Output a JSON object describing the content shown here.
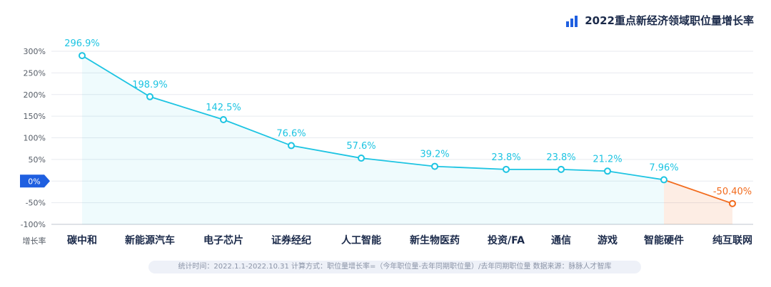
{
  "chart_data": {
    "type": "line",
    "title": "2022重点新经济领域职位量增长率",
    "xlabel": "增长率",
    "ylabel": "",
    "categories": [
      "碳中和",
      "新能源汽车",
      "电子芯片",
      "证券经纪",
      "人工智能",
      "新生物医药",
      "投资/FA",
      "通信",
      "游戏",
      "智能硬件",
      "纯互联网"
    ],
    "values": [
      296.9,
      198.9,
      142.5,
      76.6,
      57.6,
      39.2,
      23.8,
      23.8,
      21.2,
      7.96,
      -50.4
    ],
    "value_labels": [
      "296.9%",
      "198.9%",
      "142.5%",
      "76.6%",
      "57.6%",
      "39.2%",
      "23.8%",
      "23.8%",
      "21.2%",
      "7.96%",
      "-50.40%"
    ],
    "plotted_values": [
      290,
      195,
      142,
      82,
      53,
      34,
      27,
      27,
      23,
      3,
      -52
    ],
    "ylim": [
      -100,
      300
    ],
    "yticks": [
      300,
      250,
      200,
      150,
      100,
      50,
      0,
      -50,
      -100
    ],
    "ytick_labels": [
      "300%",
      "250%",
      "200%",
      "150%",
      "100%",
      "50%",
      "0%",
      "-50%",
      "-100%"
    ],
    "grid": true,
    "legend": "none",
    "colors": {
      "positive": "#1dc4e2",
      "negative": "#f26b1d",
      "axis_tag": "#1f5fe0"
    }
  },
  "footer": "统计时间：2022.1.1-2022.10.31    计算方式：职位量增长率=（今年职位量-去年同期职位量）/去年同期职位量    数据来源：脉脉人才智库"
}
